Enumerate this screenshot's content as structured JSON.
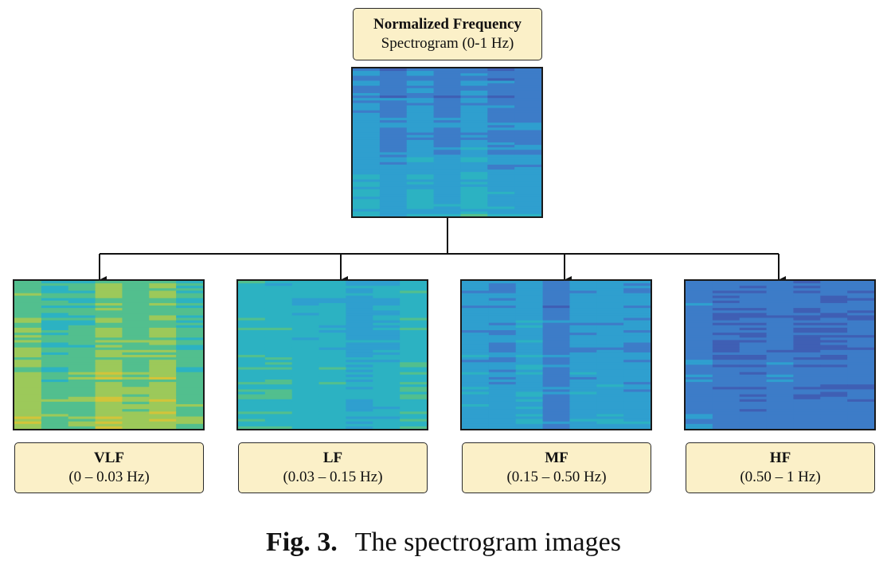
{
  "top": {
    "title": "Normalized Frequency",
    "subtitle": "Spectrogram (0-1 Hz)",
    "palette": [
      "#3f5fb4",
      "#3d7cc8",
      "#2f9fcf",
      "#2cb2c2",
      "#52bf8e",
      "#9cc95a",
      "#d2c43a"
    ],
    "base_level": 1.0,
    "level_gain": 1.6
  },
  "bands": [
    {
      "name": "VLF",
      "range": "(0 – 0.03 Hz)",
      "base_level": 3.8,
      "level_gain": 1.2
    },
    {
      "name": "LF",
      "range": "(0.03 – 0.15 Hz)",
      "base_level": 2.6,
      "level_gain": 0.5
    },
    {
      "name": "MF",
      "range": "(0.15 – 0.50 Hz)",
      "base_level": 1.4,
      "level_gain": 0.4
    },
    {
      "name": "HF",
      "range": "(0.50 – 1 Hz)",
      "base_level": 0.7,
      "level_gain": 0.3
    }
  ],
  "colors": {
    "label_box_fill": "#fbf0c8",
    "outline": "#1a1a1a"
  },
  "caption": {
    "figure": "Fig. 3.",
    "text": "The spectrogram images"
  }
}
